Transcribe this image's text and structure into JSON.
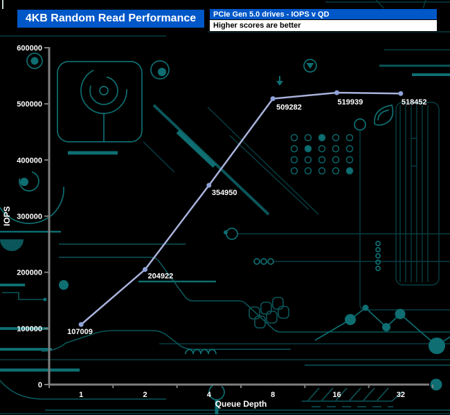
{
  "header": {
    "title": "4KB Random Read Performance",
    "legend_series": "PCIe Gen 5.0 drives - IOPS v QD",
    "legend_note": "Higher scores are better"
  },
  "chart_data": {
    "type": "line",
    "title": "4KB Random Read Performance",
    "subtitle": "PCIe Gen 5.0 drives - IOPS v QD",
    "note": "Higher scores are better",
    "xlabel": "Queue Depth",
    "ylabel": "IOPS",
    "x_scale": "log2-category",
    "categories": [
      "1",
      "2",
      "4",
      "8",
      "16",
      "32"
    ],
    "series": [
      {
        "name": "PCIe Gen 5.0 drive",
        "values": [
          107009,
          204922,
          354950,
          509282,
          519939,
          518452
        ]
      }
    ],
    "ylim": [
      0,
      600000
    ],
    "y_ticks": [
      0,
      100000,
      200000,
      300000,
      400000,
      500000,
      600000
    ],
    "grid": false,
    "data_labels": true,
    "legend_position": "top-right-header"
  },
  "colors": {
    "header_blue": "#0057C8",
    "line": "#A9B3DC",
    "marker": "#8FA2D8",
    "axis_gray": "#7F7F7F",
    "label_text": "#FFFFFF",
    "circuit_teal_bright": "#0E6E72",
    "circuit_teal_mid": "#0B565A",
    "circuit_teal_dim": "#073E42",
    "background": "#000000"
  }
}
